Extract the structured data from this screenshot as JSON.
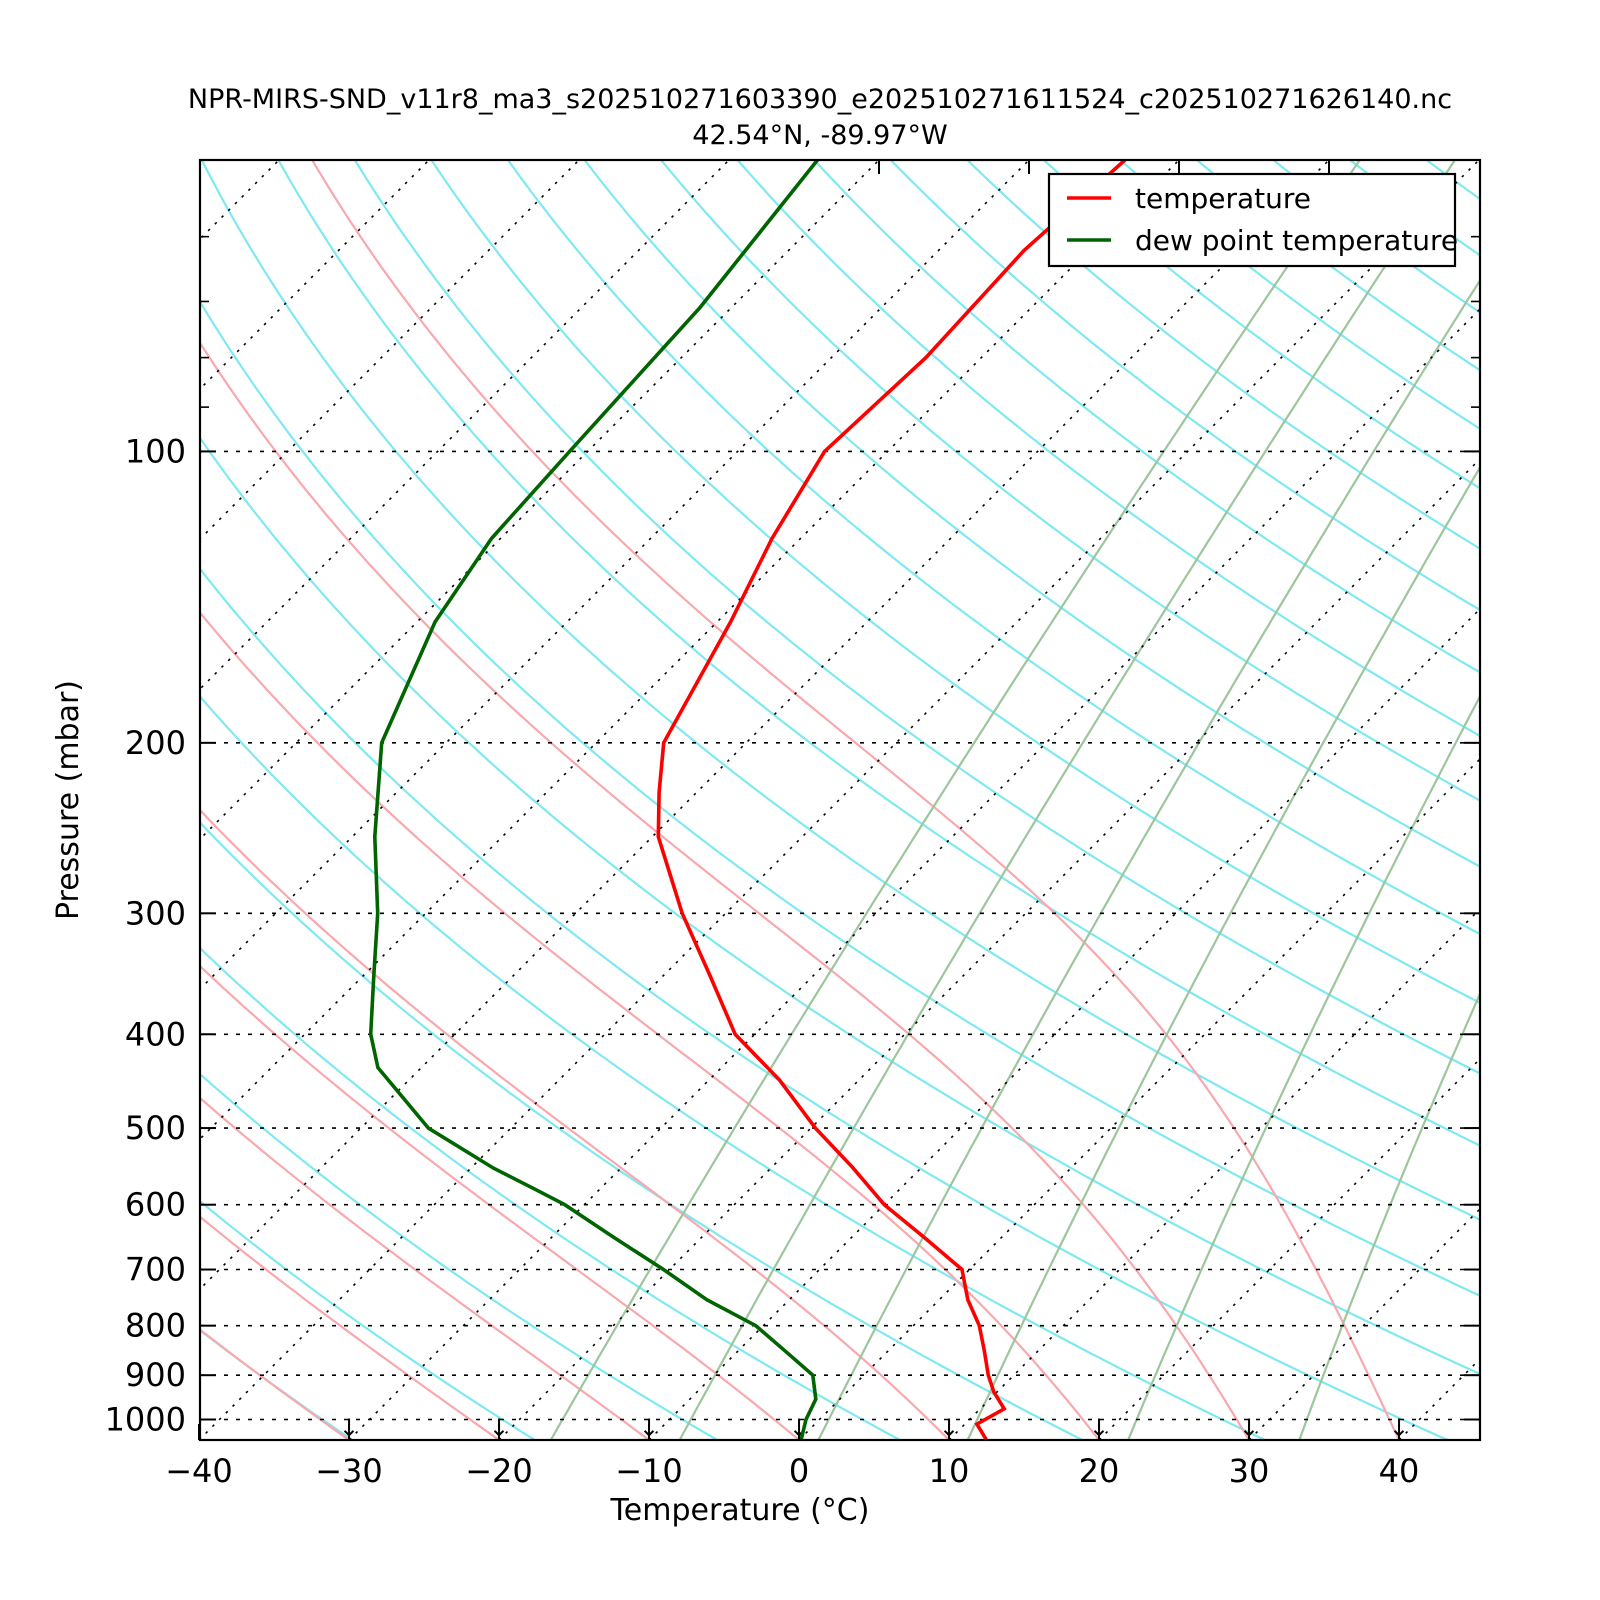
{
  "title": "NPR-MIRS-SND_v11r8_ma3_s202510271603390_e202510271611524_c202510271626140.nc",
  "subtitle": "42.54°N, -89.97°W",
  "axes": {
    "x_label": "Temperature (°C)",
    "y_label": "Pressure (mbar)",
    "x_ticks": [
      -40,
      -30,
      -20,
      -10,
      0,
      10,
      20,
      30,
      40
    ],
    "y_ticks": [
      100,
      200,
      300,
      400,
      500,
      600,
      700,
      800,
      900,
      1000
    ],
    "y_minor_ticks": [
      60,
      70,
      80,
      90
    ]
  },
  "legend": {
    "items": [
      {
        "label": "temperature",
        "color": "#ff0000"
      },
      {
        "label": "dew point temperature",
        "color": "#006400"
      }
    ]
  },
  "colors": {
    "temperature": "#ff0000",
    "dew_point": "#006400",
    "dry_adiabat": "#7fe9f1",
    "moist_adiabat": "#f9a8ad",
    "mixing_ratio": "#9cc69c",
    "grid": "#000000",
    "frame": "#000000"
  },
  "chart_data": {
    "type": "line",
    "title": "NPR-MIRS-SND_v11r8_ma3_s202510271603390_e202510271611524_c202510271626140.nc",
    "subtitle": "42.54°N, -89.97°W",
    "projection": "skew-T log-P, isotherms skewed 45 degrees",
    "xlabel": "Temperature (°C)",
    "ylabel": "Pressure (mbar)",
    "x_range_at_bottom_c": [
      -40,
      45.3
    ],
    "pressure_range_mbar": [
      50,
      1050
    ],
    "pressure_scale": "log",
    "series": [
      {
        "name": "temperature",
        "color": "#ff0000",
        "points_p_t": [
          [
            1050,
            12.5
          ],
          [
            1011,
            10.8
          ],
          [
            975,
            11.6
          ],
          [
            937,
            9.8
          ],
          [
            900,
            8.3
          ],
          [
            849,
            6.4
          ],
          [
            800,
            4.4
          ],
          [
            752,
            1.9
          ],
          [
            700,
            -0.5
          ],
          [
            648,
            -5.2
          ],
          [
            600,
            -10.0
          ],
          [
            549,
            -14.6
          ],
          [
            500,
            -19.7
          ],
          [
            446,
            -25.3
          ],
          [
            400,
            -31.3
          ],
          [
            347,
            -37.0
          ],
          [
            300,
            -42.9
          ],
          [
            250,
            -49.6
          ],
          [
            225,
            -52.5
          ],
          [
            200,
            -55.5
          ],
          [
            150,
            -59.1
          ],
          [
            123,
            -61.9
          ],
          [
            100,
            -64.2
          ],
          [
            80,
            -63.7
          ],
          [
            62,
            -64.3
          ],
          [
            50,
            -63.6
          ]
        ]
      },
      {
        "name": "dew point temperature",
        "color": "#006400",
        "points_p_t": [
          [
            1053,
            0.2
          ],
          [
            1000,
            -0.9
          ],
          [
            953,
            -1.6
          ],
          [
            900,
            -3.4
          ],
          [
            849,
            -6.9
          ],
          [
            800,
            -10.5
          ],
          [
            752,
            -15.5
          ],
          [
            700,
            -20.4
          ],
          [
            648,
            -25.9
          ],
          [
            600,
            -31.3
          ],
          [
            577,
            -34.5
          ],
          [
            550,
            -38.5
          ],
          [
            500,
            -45.5
          ],
          [
            433,
            -52.9
          ],
          [
            400,
            -55.6
          ],
          [
            348,
            -59.3
          ],
          [
            300,
            -63.2
          ],
          [
            250,
            -68.5
          ],
          [
            200,
            -74.3
          ],
          [
            150,
            -78.8
          ],
          [
            123,
            -80.6
          ],
          [
            100,
            -81.2
          ],
          [
            71,
            -82.1
          ],
          [
            50,
            -84.1
          ]
        ]
      }
    ],
    "background": {
      "isobars_mbar": [
        100,
        200,
        300,
        400,
        500,
        600,
        700,
        800,
        900,
        1000
      ],
      "isotherms_c": {
        "from": -120,
        "to": 40,
        "step": 10
      },
      "dry_adiabats_theta_k": {
        "from": 228,
        "to": 540,
        "step": 12
      },
      "moist_adiabats_start_c_at_1050mb": {
        "from": -60,
        "to": 40,
        "step": 10
      },
      "mixing_ratio_g_per_kg": [
        1,
        2,
        4,
        8,
        16,
        32
      ],
      "arrow_marks_at_isotherms_c": [
        -30,
        -20,
        -10,
        0,
        10,
        20,
        30,
        40
      ],
      "legend_position": "upper right",
      "grid_style": "dotted black"
    }
  }
}
